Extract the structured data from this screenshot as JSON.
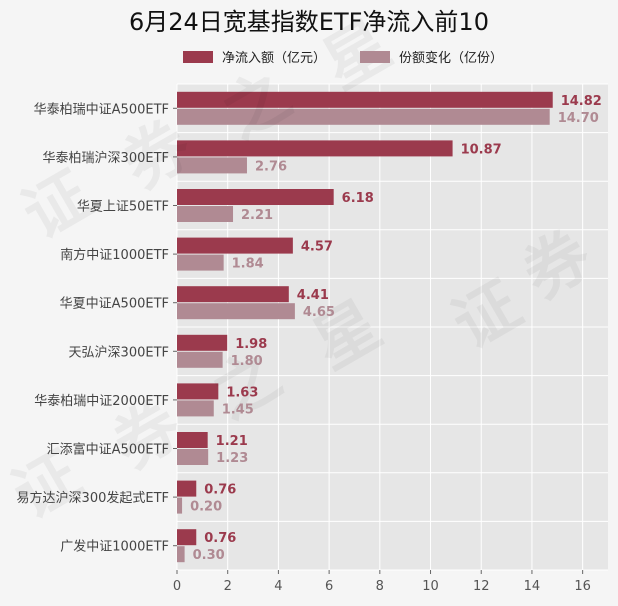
{
  "chart_data": {
    "type": "bar",
    "orientation": "horizontal",
    "title": "6月24日宽基指数ETF净流入前10",
    "categories": [
      "华泰柏瑞中证A500ETF",
      "华泰柏瑞沪深300ETF",
      "华夏上证50ETF",
      "南方中证1000ETF",
      "华夏中证A500ETF",
      "天弘沪深300ETF",
      "华泰柏瑞中证2000ETF",
      "汇添富中证A500ETF",
      "易方达沪深300发起式ETF",
      "广发中证1000ETF"
    ],
    "series": [
      {
        "name": "净流入额（亿元）",
        "color": "#9b3a4d",
        "values": [
          14.82,
          10.87,
          6.18,
          4.57,
          4.41,
          1.98,
          1.63,
          1.21,
          0.76,
          0.76
        ],
        "labels": [
          "14.82",
          "10.87",
          "6.18",
          "4.57",
          "4.41",
          "1.98",
          "1.63",
          "1.21",
          "0.76",
          "0.76"
        ]
      },
      {
        "name": "份额变化（亿份）",
        "color": "#b08a93",
        "values": [
          14.7,
          2.76,
          2.21,
          1.84,
          4.65,
          1.8,
          1.45,
          1.23,
          0.2,
          0.3
        ],
        "labels": [
          "14.70",
          "2.76",
          "2.21",
          "1.84",
          "4.65",
          "1.80",
          "1.45",
          "1.23",
          "0.20",
          "0.30"
        ]
      }
    ],
    "xlim": [
      0,
      17
    ],
    "xticks": [
      "0",
      "2",
      "4",
      "6",
      "8",
      "10",
      "12",
      "14",
      "16"
    ],
    "grid": true,
    "legend_position": "top",
    "plot_background": "#e6e6e6",
    "watermark_text": [
      "证",
      "券",
      "之",
      "星"
    ]
  }
}
